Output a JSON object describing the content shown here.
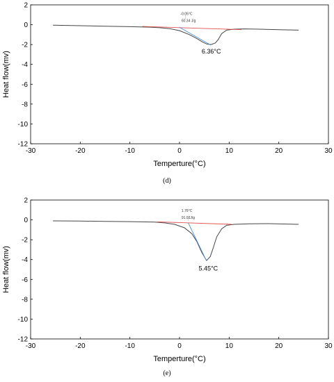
{
  "chart_data": [
    {
      "type": "line",
      "panel_label": "(d)",
      "xlabel": "Temperture(°C)",
      "ylabel": "Heat flow(mv)",
      "xlim": [
        -30,
        30
      ],
      "ylim": [
        -12,
        2
      ],
      "xticks": [
        -30,
        -20,
        -10,
        0,
        10,
        20,
        30
      ],
      "yticks": [
        2,
        0,
        -2,
        -4,
        -6,
        -8,
        -10,
        -12
      ],
      "grid": false,
      "annotations": {
        "onset_temp": "-0.05°C",
        "enthalpy": "60.34 J/g",
        "peak": "6.36°C"
      },
      "series": [
        {
          "color": "#444444",
          "x": [
            -25.5,
            -20,
            -15,
            -10,
            -6,
            -4,
            -2,
            0,
            2,
            3.5,
            4.5,
            5.5,
            6.36,
            7.2,
            7.8,
            8.5,
            9.5,
            11,
            13,
            16,
            20,
            24
          ],
          "y": [
            -0.05,
            -0.1,
            -0.15,
            -0.2,
            -0.25,
            -0.3,
            -0.4,
            -0.6,
            -1.0,
            -1.4,
            -1.7,
            -1.95,
            -2.0,
            -1.85,
            -1.5,
            -0.9,
            -0.55,
            -0.45,
            -0.42,
            -0.45,
            -0.5,
            -0.55
          ]
        },
        {
          "color": "#e05050",
          "x": [
            -7.5,
            12.5
          ],
          "y": [
            -0.18,
            -0.5
          ]
        },
        {
          "color": "#4a90d0",
          "x": [
            -0.05,
            6.3
          ],
          "y": [
            -0.25,
            -2.05
          ]
        }
      ]
    },
    {
      "type": "line",
      "panel_label": "(e)",
      "xlabel": "Temperture(°C)",
      "ylabel": "Heat flow(mv)",
      "xlim": [
        -30,
        30
      ],
      "ylim": [
        -12,
        2
      ],
      "xticks": [
        -30,
        -20,
        -10,
        0,
        10,
        20,
        30
      ],
      "yticks": [
        2,
        0,
        -2,
        -4,
        -6,
        -8,
        -10,
        -12
      ],
      "grid": false,
      "annotations": {
        "onset_temp": "1.76°C",
        "enthalpy": "91.03J/g",
        "peak": "5.45°C"
      },
      "series": [
        {
          "color": "#444444",
          "x": [
            -25.5,
            -20,
            -15,
            -10,
            -5,
            -3,
            -1,
            1,
            2.5,
            3.5,
            4.5,
            5.45,
            6.2,
            6.8,
            7.5,
            8.5,
            9.5,
            11,
            14,
            18,
            24
          ],
          "y": [
            -0.1,
            -0.12,
            -0.15,
            -0.18,
            -0.22,
            -0.3,
            -0.45,
            -0.8,
            -1.4,
            -2.2,
            -3.3,
            -4.1,
            -3.7,
            -2.8,
            -1.7,
            -0.9,
            -0.55,
            -0.45,
            -0.4,
            -0.38,
            -0.45
          ]
        },
        {
          "color": "#e05050",
          "x": [
            -4.5,
            10.5
          ],
          "y": [
            -0.2,
            -0.45
          ]
        },
        {
          "color": "#4a90d0",
          "x": [
            1.76,
            5.4
          ],
          "y": [
            -0.3,
            -4.1
          ]
        }
      ]
    }
  ]
}
